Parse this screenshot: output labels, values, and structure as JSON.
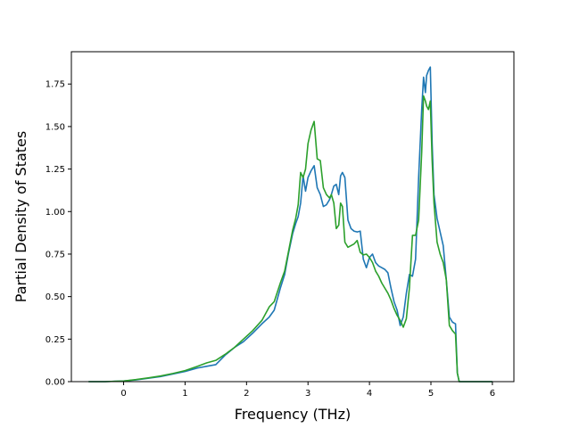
{
  "chart_data": {
    "type": "line",
    "xlabel": "Frequency (THz)",
    "ylabel": "Partial Density of States",
    "xlim": [
      -0.85,
      6.35
    ],
    "ylim": [
      0.0,
      1.94
    ],
    "xticks": [
      0,
      1,
      2,
      3,
      4,
      5,
      6
    ],
    "xtick_labels": [
      "0",
      "1",
      "2",
      "3",
      "4",
      "5",
      "6"
    ],
    "yticks": [
      0.0,
      0.25,
      0.5,
      0.75,
      1.0,
      1.25,
      1.5,
      1.75
    ],
    "ytick_labels": [
      "0.00",
      "0.25",
      "0.50",
      "0.75",
      "1.00",
      "1.25",
      "1.50",
      "1.75"
    ],
    "grid": false,
    "series": [
      {
        "color": "#1f77b4",
        "x": [
          -0.57,
          -0.3,
          0,
          0.2,
          0.4,
          0.6,
          0.8,
          1.0,
          1.2,
          1.35,
          1.5,
          1.65,
          1.8,
          1.95,
          2.1,
          2.25,
          2.37,
          2.45,
          2.55,
          2.62,
          2.68,
          2.75,
          2.8,
          2.84,
          2.88,
          2.92,
          2.96,
          3.0,
          3.05,
          3.1,
          3.15,
          3.2,
          3.25,
          3.3,
          3.35,
          3.38,
          3.42,
          3.46,
          3.5,
          3.53,
          3.56,
          3.6,
          3.65,
          3.7,
          3.75,
          3.8,
          3.85,
          3.9,
          3.95,
          4.0,
          4.05,
          4.1,
          4.15,
          4.2,
          4.25,
          4.3,
          4.35,
          4.4,
          4.45,
          4.5,
          4.55,
          4.6,
          4.65,
          4.7,
          4.75,
          4.8,
          4.85,
          4.88,
          4.91,
          4.93,
          4.96,
          4.99,
          5.02,
          5.05,
          5.1,
          5.15,
          5.2,
          5.25,
          5.3,
          5.35,
          5.4,
          5.43,
          5.46,
          5.5,
          6.0
        ],
        "y": [
          0,
          0,
          0.004,
          0.01,
          0.02,
          0.03,
          0.045,
          0.06,
          0.08,
          0.09,
          0.1,
          0.155,
          0.2,
          0.235,
          0.285,
          0.34,
          0.38,
          0.42,
          0.55,
          0.63,
          0.75,
          0.87,
          0.93,
          0.97,
          1.05,
          1.21,
          1.12,
          1.2,
          1.24,
          1.27,
          1.14,
          1.1,
          1.03,
          1.04,
          1.07,
          1.1,
          1.15,
          1.16,
          1.1,
          1.21,
          1.23,
          1.2,
          0.95,
          0.9,
          0.885,
          0.88,
          0.885,
          0.72,
          0.67,
          0.73,
          0.75,
          0.7,
          0.68,
          0.67,
          0.66,
          0.64,
          0.55,
          0.47,
          0.42,
          0.33,
          0.38,
          0.52,
          0.63,
          0.62,
          0.72,
          1.2,
          1.6,
          1.79,
          1.7,
          1.8,
          1.83,
          1.85,
          1.4,
          1.1,
          0.96,
          0.88,
          0.8,
          0.6,
          0.38,
          0.35,
          0.34,
          0.05,
          0,
          0,
          0
        ]
      },
      {
        "color": "#2ca02c",
        "x": [
          -0.57,
          -0.3,
          0,
          0.2,
          0.4,
          0.6,
          0.8,
          1.0,
          1.2,
          1.35,
          1.5,
          1.65,
          1.8,
          1.95,
          2.1,
          2.25,
          2.37,
          2.45,
          2.55,
          2.62,
          2.68,
          2.75,
          2.8,
          2.84,
          2.88,
          2.92,
          2.96,
          3.0,
          3.05,
          3.1,
          3.15,
          3.2,
          3.25,
          3.3,
          3.35,
          3.38,
          3.42,
          3.46,
          3.5,
          3.53,
          3.56,
          3.6,
          3.65,
          3.7,
          3.75,
          3.8,
          3.85,
          3.9,
          3.95,
          4.0,
          4.05,
          4.1,
          4.15,
          4.2,
          4.25,
          4.3,
          4.35,
          4.4,
          4.45,
          4.5,
          4.55,
          4.6,
          4.65,
          4.7,
          4.75,
          4.8,
          4.85,
          4.88,
          4.91,
          4.93,
          4.96,
          4.99,
          5.02,
          5.05,
          5.1,
          5.15,
          5.2,
          5.25,
          5.3,
          5.35,
          5.4,
          5.43,
          5.46,
          5.5,
          6.0
        ],
        "y": [
          0,
          0,
          0.004,
          0.012,
          0.022,
          0.033,
          0.048,
          0.065,
          0.09,
          0.11,
          0.125,
          0.16,
          0.2,
          0.25,
          0.3,
          0.36,
          0.44,
          0.47,
          0.58,
          0.65,
          0.76,
          0.89,
          0.96,
          1.04,
          1.23,
          1.2,
          1.25,
          1.4,
          1.48,
          1.53,
          1.31,
          1.3,
          1.14,
          1.1,
          1.08,
          1.1,
          1.05,
          0.9,
          0.92,
          1.05,
          1.03,
          0.82,
          0.79,
          0.8,
          0.81,
          0.83,
          0.76,
          0.745,
          0.75,
          0.73,
          0.7,
          0.65,
          0.62,
          0.58,
          0.55,
          0.52,
          0.48,
          0.43,
          0.39,
          0.36,
          0.32,
          0.37,
          0.55,
          0.86,
          0.86,
          0.95,
          1.35,
          1.68,
          1.65,
          1.62,
          1.6,
          1.65,
          1.3,
          1.05,
          0.82,
          0.75,
          0.7,
          0.6,
          0.33,
          0.3,
          0.28,
          0.05,
          0,
          0,
          0
        ]
      }
    ]
  }
}
